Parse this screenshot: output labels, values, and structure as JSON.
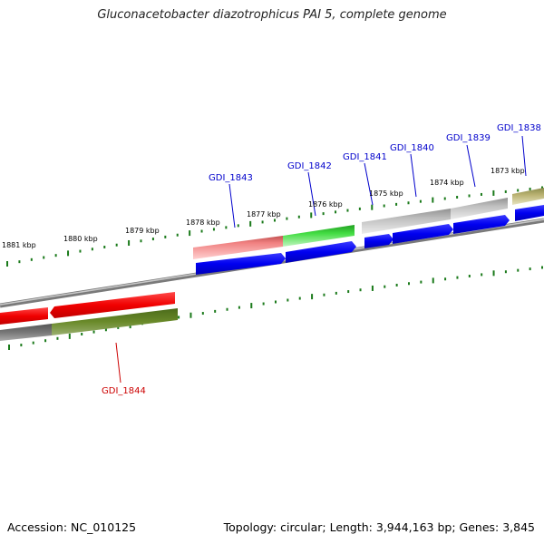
{
  "title": "Gluconacetobacter diazotrophicus PAI 5, complete genome",
  "footer": {
    "accession": "Accession: NC_010125",
    "summary": "Topology: circular; Length: 3,944,163 bp; Genes: 3,845"
  },
  "ticks": [
    "1873 kbp",
    "1874 kbp",
    "1875 kbp",
    "1876 kbp",
    "1877 kbp",
    "1878 kbp",
    "1879 kbp",
    "1880 kbp",
    "1881 kbp"
  ],
  "gene_labels": [
    "GDI_1838",
    "GDI_1839",
    "GDI_1840",
    "GDI_1841",
    "GDI_1842",
    "GDI_1843",
    "GDI_1844"
  ],
  "colors": {
    "forward_label": "#0000cc",
    "reverse_label": "#cc0000",
    "cds_forward": "#0000ee",
    "cds_reverse": "#ee0000",
    "tick": "#1a7a1a",
    "backbone": "#888888"
  }
}
